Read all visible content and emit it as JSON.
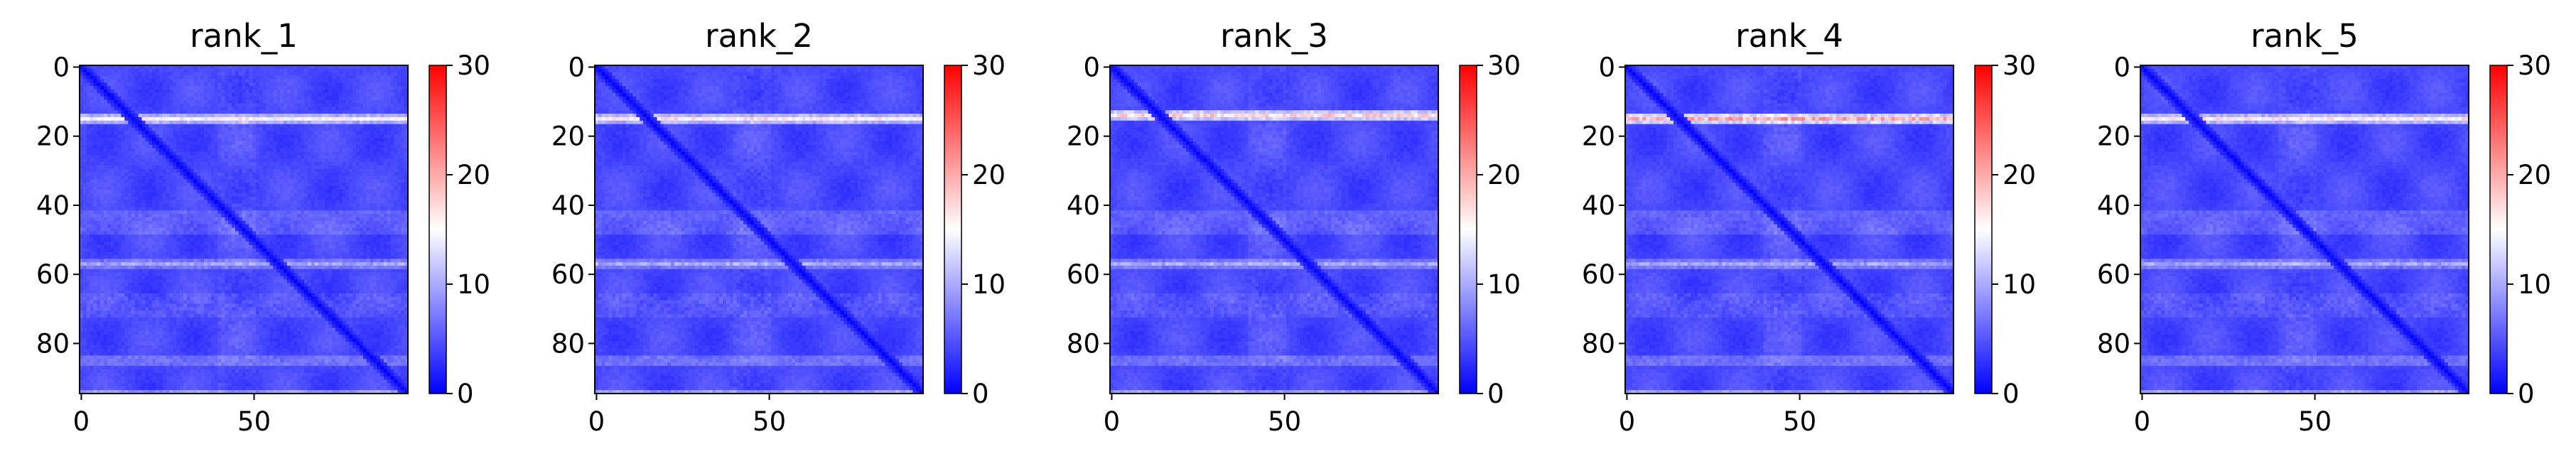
{
  "chart_data": [
    {
      "type": "heatmap",
      "title": "rank_1",
      "x_ticks": [
        0,
        50
      ],
      "y_ticks": [
        0,
        20,
        40,
        60,
        80
      ],
      "colorbar_ticks": [
        0,
        10,
        20,
        30
      ],
      "colormap": [
        "#0000ff",
        "#ffffff",
        "#ff0000"
      ],
      "range": [
        0,
        30
      ],
      "matrix_size": 95,
      "bright_rows": [
        15,
        57,
        85,
        94
      ],
      "peak_value": 16
    },
    {
      "type": "heatmap",
      "title": "rank_2",
      "x_ticks": [
        0,
        50
      ],
      "y_ticks": [
        0,
        20,
        40,
        60,
        80
      ],
      "colorbar_ticks": [
        0,
        10,
        20,
        30
      ],
      "colormap": [
        "#0000ff",
        "#ffffff",
        "#ff0000"
      ],
      "range": [
        0,
        30
      ],
      "matrix_size": 95,
      "bright_rows": [
        15,
        57,
        85,
        94
      ],
      "peak_value": 17
    },
    {
      "type": "heatmap",
      "title": "rank_3",
      "x_ticks": [
        0,
        50
      ],
      "y_ticks": [
        0,
        20,
        40,
        60,
        80
      ],
      "colorbar_ticks": [
        0,
        10,
        20,
        30
      ],
      "colormap": [
        "#0000ff",
        "#ffffff",
        "#ff0000"
      ],
      "range": [
        0,
        30
      ],
      "matrix_size": 95,
      "bright_rows": [
        14,
        57,
        85,
        94
      ],
      "peak_value": 19
    },
    {
      "type": "heatmap",
      "title": "rank_4",
      "x_ticks": [
        0,
        50
      ],
      "y_ticks": [
        0,
        20,
        40,
        60,
        80
      ],
      "colorbar_ticks": [
        0,
        10,
        20,
        30
      ],
      "colormap": [
        "#0000ff",
        "#ffffff",
        "#ff0000"
      ],
      "range": [
        0,
        30
      ],
      "matrix_size": 95,
      "bright_rows": [
        15,
        57,
        85,
        94
      ],
      "peak_value": 21
    },
    {
      "type": "heatmap",
      "title": "rank_5",
      "x_ticks": [
        0,
        50
      ],
      "y_ticks": [
        0,
        20,
        40,
        60,
        80
      ],
      "colorbar_ticks": [
        0,
        10,
        20,
        30
      ],
      "colormap": [
        "#0000ff",
        "#ffffff",
        "#ff0000"
      ],
      "range": [
        0,
        30
      ],
      "matrix_size": 95,
      "bright_rows": [
        15,
        57,
        85,
        94
      ],
      "peak_value": 17
    }
  ]
}
